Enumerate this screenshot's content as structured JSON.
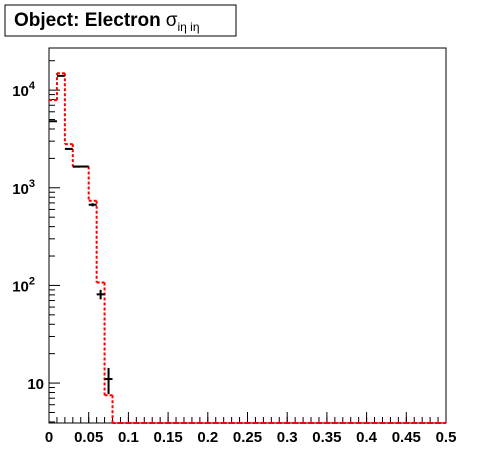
{
  "chart_data": {
    "type": "histogram",
    "title": {
      "text": "Object: Electron",
      "symbol": "σ",
      "subscript": "iη iη"
    },
    "bins": [
      0,
      0.01,
      0.02,
      0.03,
      0.04,
      0.05,
      0.06,
      0.07,
      0.08,
      0.09,
      0.1,
      0.11,
      0.12,
      0.13,
      0.14,
      0.15,
      0.16,
      0.17,
      0.18,
      0.19,
      0.2,
      0.21,
      0.22,
      0.23,
      0.24,
      0.25,
      0.26,
      0.27,
      0.28,
      0.29,
      0.3,
      0.31,
      0.32,
      0.33,
      0.34,
      0.35,
      0.36,
      0.37,
      0.38,
      0.39,
      0.4,
      0.41,
      0.42,
      0.43,
      0.44,
      0.45,
      0.46,
      0.47,
      0.48,
      0.49,
      0.5
    ],
    "series": [
      {
        "style": "step",
        "color": "#ff0000",
        "values": [
          7900,
          14900,
          2800,
          1640,
          1650,
          736,
          107,
          7.5,
          0,
          0,
          0,
          0,
          0,
          0,
          0,
          0,
          0,
          0,
          0,
          0,
          0,
          0,
          0,
          0,
          0,
          0,
          0,
          0,
          0,
          0,
          0,
          0,
          0,
          0,
          0,
          0,
          0,
          0,
          0,
          0,
          0,
          0,
          0,
          0,
          0,
          0,
          0,
          0,
          0,
          0
        ]
      },
      {
        "style": "points",
        "color": "#000000",
        "values": [
          4800,
          14000,
          2500,
          1650,
          1650,
          670,
          81,
          11,
          null,
          null,
          null,
          null,
          null,
          null,
          null,
          null,
          null,
          null,
          null,
          null,
          null,
          null,
          null,
          null,
          null,
          null,
          null,
          null,
          null,
          null,
          null,
          null,
          null,
          null,
          null,
          null,
          null,
          null,
          null,
          null,
          null,
          null,
          null,
          null,
          null,
          null,
          null,
          null,
          null,
          null
        ],
        "errors": [
          69,
          118,
          50,
          41,
          41,
          26,
          9,
          3.3,
          null,
          null,
          null,
          null,
          null,
          null,
          null,
          null,
          null,
          null,
          null,
          null,
          null,
          null,
          null,
          null,
          null,
          null,
          null,
          null,
          null,
          null,
          null,
          null,
          null,
          null,
          null,
          null,
          null,
          null,
          null,
          null,
          null,
          null,
          null,
          null,
          null,
          null,
          null,
          null,
          null,
          null
        ]
      }
    ],
    "xlim": [
      0,
      0.5
    ],
    "xticks": [
      0,
      0.05,
      0.1,
      0.15,
      0.2,
      0.25,
      0.3,
      0.35,
      0.4,
      0.45,
      0.5
    ],
    "ylim": [
      3.9,
      27000
    ],
    "yscale": "log",
    "yticks": [
      10,
      {
        "value": 100,
        "label": "10",
        "power": "2"
      },
      {
        "value": 1000,
        "label": "10",
        "power": "3"
      },
      {
        "value": 10000,
        "label": "10",
        "power": "4"
      }
    ]
  }
}
